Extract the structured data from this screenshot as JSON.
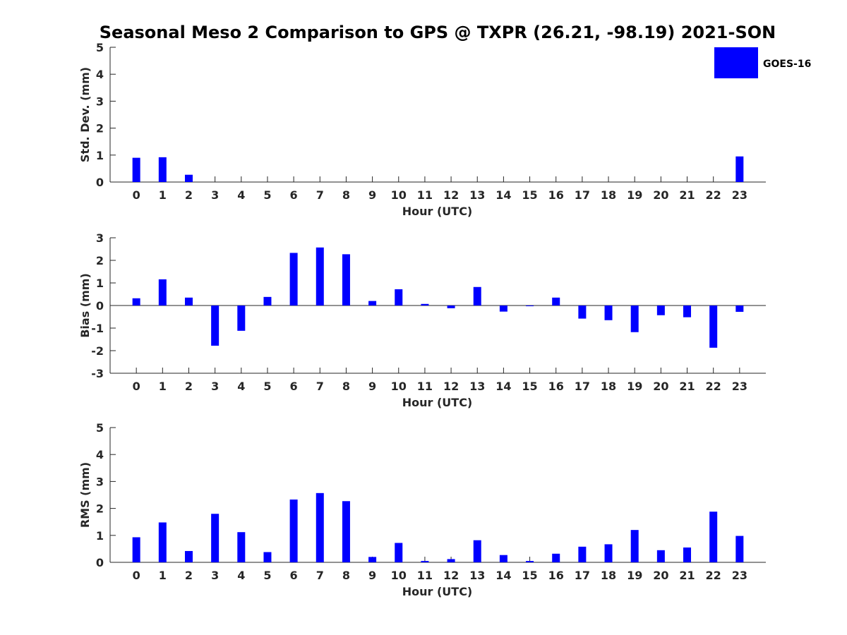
{
  "chart_data": {
    "title": "Seasonal Meso 2 Comparison to GPS @ TXPR (26.21, -98.19) 2021-SON",
    "legend": {
      "label": "GOES-16",
      "color": "#0000ff",
      "placement": "top-right"
    },
    "hours": [
      "0",
      "1",
      "2",
      "3",
      "4",
      "5",
      "6",
      "7",
      "8",
      "9",
      "10",
      "11",
      "12",
      "13",
      "14",
      "15",
      "16",
      "17",
      "18",
      "19",
      "20",
      "21",
      "22",
      "23"
    ],
    "panels": [
      {
        "type": "bar",
        "xlabel": "Hour (UTC)",
        "ylabel": "Std. Dev. (mm)",
        "ylim": [
          0,
          5
        ],
        "yticks": [
          "0",
          "1",
          "2",
          "3",
          "4",
          "5"
        ],
        "values": [
          0.9,
          0.92,
          0.27,
          null,
          null,
          null,
          null,
          null,
          null,
          null,
          null,
          null,
          null,
          null,
          null,
          null,
          null,
          null,
          null,
          null,
          null,
          null,
          null,
          0.95
        ]
      },
      {
        "type": "bar",
        "xlabel": "Hour (UTC)",
        "ylabel": "Bias (mm)",
        "ylim": [
          -3,
          3
        ],
        "yticks": [
          "-3",
          "-2",
          "-1",
          "0",
          "1",
          "2",
          "3"
        ],
        "values": [
          0.32,
          1.16,
          0.35,
          -1.78,
          -1.12,
          0.38,
          2.33,
          2.57,
          2.27,
          0.2,
          0.72,
          0.07,
          -0.12,
          0.82,
          -0.27,
          -0.02,
          0.35,
          -0.58,
          -0.65,
          -1.18,
          -0.43,
          -0.52,
          -1.87,
          -0.28
        ]
      },
      {
        "type": "bar",
        "xlabel": "Hour (UTC)",
        "ylabel": "RMS (mm)",
        "ylim": [
          0,
          5
        ],
        "yticks": [
          "0",
          "1",
          "2",
          "3",
          "4",
          "5"
        ],
        "values": [
          0.93,
          1.48,
          0.42,
          1.8,
          1.12,
          0.38,
          2.33,
          2.57,
          2.27,
          0.2,
          0.72,
          0.05,
          0.12,
          0.82,
          0.27,
          0.05,
          0.32,
          0.58,
          0.67,
          1.2,
          0.45,
          0.55,
          1.88,
          0.98
        ]
      }
    ]
  }
}
